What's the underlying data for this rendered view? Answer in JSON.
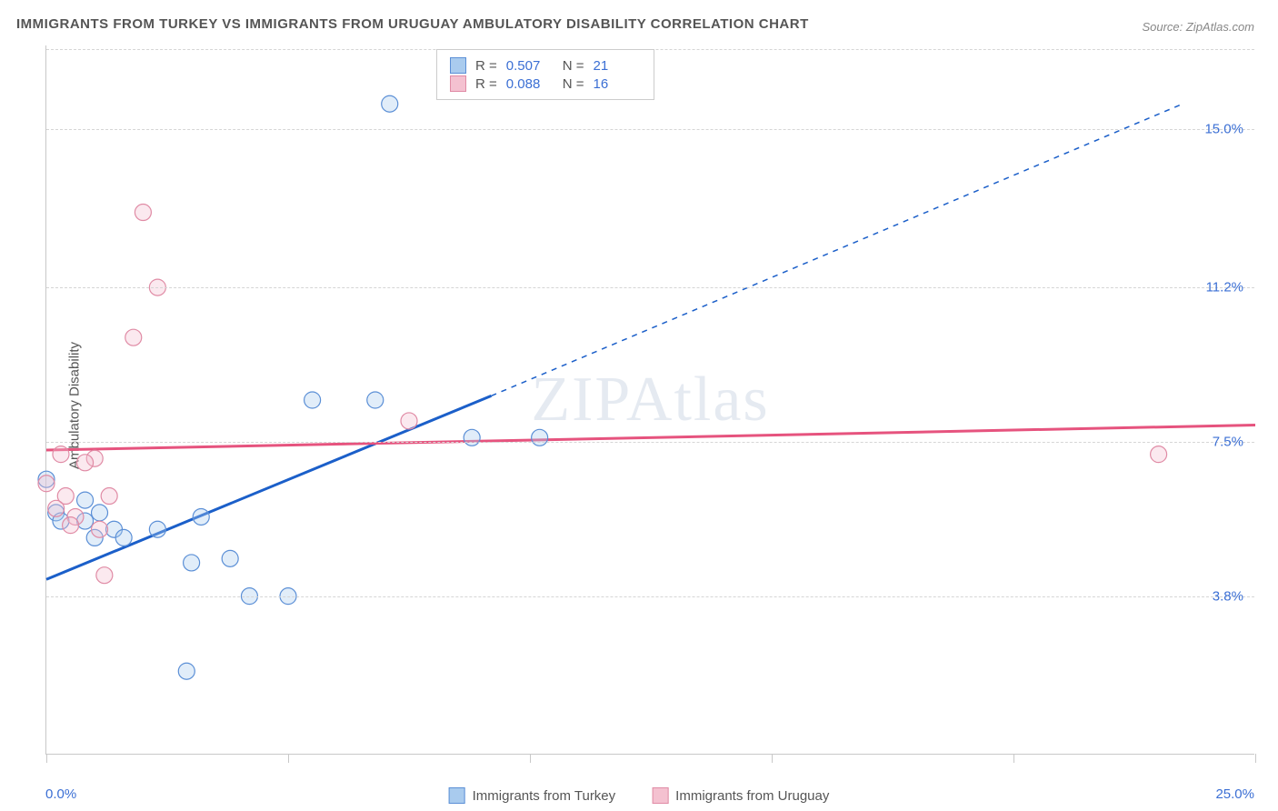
{
  "title": "IMMIGRANTS FROM TURKEY VS IMMIGRANTS FROM URUGUAY AMBULATORY DISABILITY CORRELATION CHART",
  "source": "Source: ZipAtlas.com",
  "watermark": "ZIPAtlas",
  "ylabel": "Ambulatory Disability",
  "chart": {
    "type": "scatter",
    "xlim": [
      0,
      25
    ],
    "ylim": [
      0,
      17
    ],
    "background_color": "#ffffff",
    "grid_color": "#d5d5d5",
    "x_min_label": "0.0%",
    "x_max_label": "25.0%",
    "ygrid_values": [
      3.8,
      7.5,
      11.2,
      15.0
    ],
    "ygrid_labels": [
      "3.8%",
      "7.5%",
      "11.2%",
      "15.0%"
    ],
    "xtick_values": [
      0,
      5,
      10,
      15,
      20,
      25
    ],
    "marker_radius": 9,
    "marker_stroke_width": 1.2,
    "marker_fill_opacity": 0.35,
    "trend_line_width_solid": 3,
    "trend_line_width_dash": 1.5,
    "series": [
      {
        "name": "Immigrants from Turkey",
        "color_stroke": "#5b8fd6",
        "color_fill": "#a9cbee",
        "trend_color": "#1b5fc9",
        "R": "0.507",
        "N": "21",
        "points": [
          [
            0.0,
            6.6
          ],
          [
            0.2,
            5.8
          ],
          [
            0.3,
            5.6
          ],
          [
            0.8,
            6.1
          ],
          [
            0.8,
            5.6
          ],
          [
            1.1,
            5.8
          ],
          [
            1.0,
            5.2
          ],
          [
            1.4,
            5.4
          ],
          [
            1.6,
            5.2
          ],
          [
            2.3,
            5.4
          ],
          [
            3.2,
            5.7
          ],
          [
            3.0,
            4.6
          ],
          [
            3.8,
            4.7
          ],
          [
            4.2,
            3.8
          ],
          [
            5.0,
            3.8
          ],
          [
            2.9,
            2.0
          ],
          [
            8.8,
            7.6
          ],
          [
            10.2,
            7.6
          ],
          [
            5.5,
            8.5
          ],
          [
            6.8,
            8.5
          ],
          [
            7.1,
            15.6
          ]
        ],
        "trend_solid": {
          "x1": 0,
          "y1": 4.2,
          "x2": 9.2,
          "y2": 8.6
        },
        "trend_dash": {
          "x1": 9.2,
          "y1": 8.6,
          "x2": 23.5,
          "y2": 15.6
        }
      },
      {
        "name": "Immigrants from Uruguay",
        "color_stroke": "#e08ba5",
        "color_fill": "#f4c1d0",
        "trend_color": "#e6537e",
        "R": "0.088",
        "N": "16",
        "points": [
          [
            0.0,
            6.5
          ],
          [
            0.3,
            7.2
          ],
          [
            0.4,
            6.2
          ],
          [
            1.0,
            7.1
          ],
          [
            0.6,
            5.7
          ],
          [
            1.1,
            5.4
          ],
          [
            1.2,
            4.3
          ],
          [
            1.8,
            10.0
          ],
          [
            2.0,
            13.0
          ],
          [
            2.3,
            11.2
          ],
          [
            1.3,
            6.2
          ],
          [
            7.5,
            8.0
          ],
          [
            23.0,
            7.2
          ],
          [
            0.2,
            5.9
          ],
          [
            0.8,
            7.0
          ],
          [
            0.5,
            5.5
          ]
        ],
        "trend_solid": {
          "x1": 0,
          "y1": 7.3,
          "x2": 25,
          "y2": 7.9
        }
      }
    ]
  },
  "legend_top": {
    "R_label": "R =",
    "N_label": "N ="
  }
}
